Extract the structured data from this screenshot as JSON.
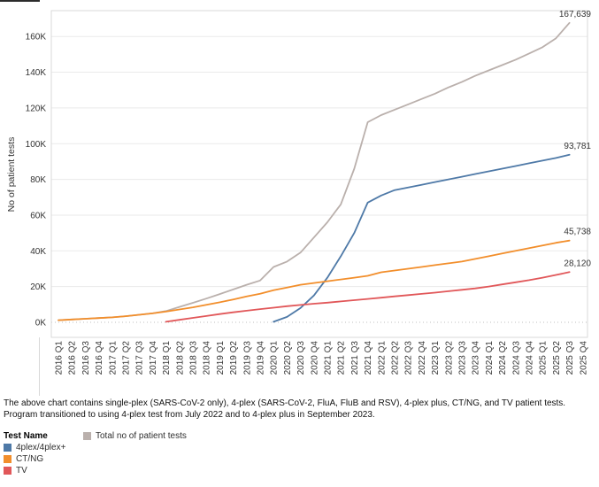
{
  "chart_data": {
    "type": "line",
    "ylabel": "No of patient tests",
    "y_ticks": [
      "0K",
      "20K",
      "40K",
      "60K",
      "80K",
      "100K",
      "120K",
      "140K",
      "160K"
    ],
    "ylim": [
      0,
      174000
    ],
    "grid": true,
    "legend_position": "bottom-left",
    "categories": [
      "2016 Q1",
      "2016 Q2",
      "2016 Q3",
      "2016 Q4",
      "2017 Q1",
      "2017 Q2",
      "2017 Q3",
      "2017 Q4",
      "2018 Q1",
      "2018 Q2",
      "2018 Q3",
      "2018 Q4",
      "2019 Q1",
      "2019 Q2",
      "2019 Q3",
      "2019 Q4",
      "2020 Q1",
      "2020 Q2",
      "2020 Q3",
      "2020 Q4",
      "2021 Q1",
      "2021 Q2",
      "2021 Q3",
      "2021 Q4",
      "2022 Q1",
      "2022 Q2",
      "2022 Q3",
      "2022 Q4",
      "2023 Q1",
      "2023 Q2",
      "2023 Q3",
      "2023 Q4",
      "2024 Q1",
      "2024 Q2",
      "2024 Q3",
      "2024 Q4",
      "2025 Q1",
      "2025 Q2",
      "2025 Q3",
      "2025 Q4"
    ],
    "series": [
      {
        "name": "Total no of patient tests",
        "color": "#bab0ac",
        "start_index": 0,
        "end_label": "167,639",
        "values": [
          1200,
          1600,
          2000,
          2400,
          2800,
          3400,
          4200,
          5000,
          6300,
          8600,
          10900,
          13300,
          15800,
          18400,
          21000,
          23400,
          31000,
          34000,
          39000,
          47500,
          56000,
          66000,
          86000,
          112000,
          116000,
          119000,
          122000,
          125000,
          128000,
          131500,
          134500,
          138000,
          141000,
          144000,
          147000,
          150500,
          154000,
          159000,
          167639
        ]
      },
      {
        "name": "4plex/4plex+",
        "color": "#4e79a7",
        "start_index": 16,
        "end_label": "93,781",
        "values": [
          300,
          3000,
          8000,
          15000,
          25000,
          37000,
          50000,
          67000,
          71000,
          74000,
          75500,
          77000,
          78500,
          80000,
          81500,
          83000,
          84500,
          86000,
          87500,
          89000,
          90500,
          92000,
          93781
        ]
      },
      {
        "name": "CT/NG",
        "color": "#f28e2b",
        "start_index": 0,
        "end_label": "45,738",
        "values": [
          1200,
          1600,
          2000,
          2400,
          2800,
          3400,
          4200,
          5000,
          6000,
          7200,
          8400,
          9800,
          11200,
          12800,
          14500,
          16000,
          18000,
          19500,
          21000,
          22000,
          23000,
          24000,
          25000,
          26000,
          28000,
          29000,
          30000,
          31000,
          32000,
          33000,
          34000,
          35500,
          37000,
          38500,
          40000,
          41500,
          43000,
          44500,
          45738
        ]
      },
      {
        "name": "TV",
        "color": "#e15759",
        "start_index": 8,
        "end_label": "28,120",
        "values": [
          300,
          1400,
          2500,
          3500,
          4600,
          5600,
          6500,
          7400,
          8200,
          9000,
          9700,
          10400,
          11000,
          11700,
          12400,
          13100,
          13800,
          14500,
          15200,
          15900,
          16600,
          17400,
          18200,
          19000,
          20000,
          21200,
          22400,
          23600,
          25000,
          26500,
          28120
        ]
      }
    ]
  },
  "caption": {
    "line1": "The above chart contains single-plex (SARS-CoV-2 only), 4-plex (SARS-CoV-2, FluA, FluB and RSV), 4-plex plus, CT/NG, and TV patient tests.",
    "line2": "Program transitioned to using 4-plex test from July 2022 and to 4-plex plus in September 2023."
  },
  "legend": {
    "title": "Test Name",
    "items": [
      {
        "label": "4plex/4plex+",
        "color": "#4e79a7"
      },
      {
        "label": "CT/NG",
        "color": "#f28e2b"
      },
      {
        "label": "TV",
        "color": "#e15759"
      },
      {
        "label": "Total no of patient tests",
        "color": "#bab0ac"
      }
    ]
  }
}
